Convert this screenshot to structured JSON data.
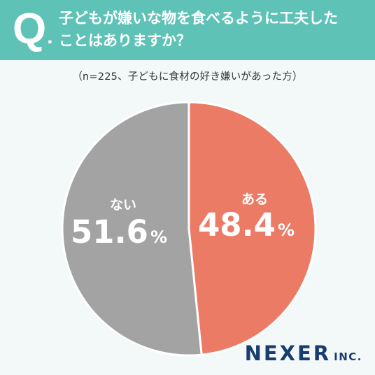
{
  "header": {
    "q": "Q",
    "q_dot": ".",
    "question_lines": [
      "子どもが嫌いな物を食べるように工夫した",
      "ことはありますか？"
    ]
  },
  "sample_note": "（n=225、子どもに食材の好き嫌いがあった方）",
  "brand": {
    "name": "NEXER",
    "suffix": "INC."
  },
  "colors": {
    "header": "#5ec2b7",
    "yes": "#ec7b66",
    "no": "#a3a3a3",
    "brand": "#1a3d70"
  },
  "chart_data": {
    "type": "pie",
    "slices": [
      {
        "label": "ある",
        "value": 48.4,
        "display": "48.4",
        "unit": "%"
      },
      {
        "label": "ない",
        "value": 51.6,
        "display": "51.6",
        "unit": "%"
      }
    ],
    "start": "12 o'clock",
    "direction": "clockwise",
    "legend": "none"
  }
}
